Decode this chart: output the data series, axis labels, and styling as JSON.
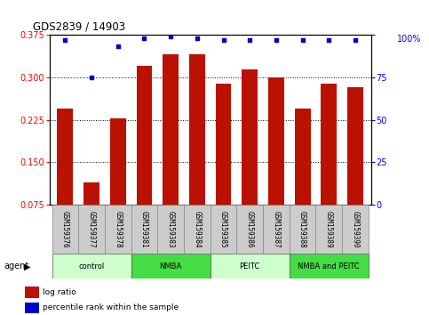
{
  "title": "GDS2839 / 14903",
  "samples": [
    "GSM159376",
    "GSM159377",
    "GSM159378",
    "GSM159381",
    "GSM159383",
    "GSM159384",
    "GSM159385",
    "GSM159386",
    "GSM159387",
    "GSM159388",
    "GSM159389",
    "GSM159390"
  ],
  "log_ratio": [
    0.245,
    0.115,
    0.228,
    0.32,
    0.34,
    0.34,
    0.288,
    0.313,
    0.3,
    0.245,
    0.288,
    0.283
  ],
  "percentile_rank": [
    97,
    75,
    93,
    98,
    99,
    98,
    97,
    97,
    97,
    97,
    97,
    97
  ],
  "ylim_left": [
    0.075,
    0.375
  ],
  "ylim_right": [
    0,
    100
  ],
  "yticks_left": [
    0.075,
    0.15,
    0.225,
    0.3,
    0.375
  ],
  "yticks_right": [
    0,
    25,
    50,
    75,
    100
  ],
  "bar_color": "#bb1100",
  "dot_color": "#0000cc",
  "groups": [
    {
      "label": "control",
      "start": 0,
      "end": 3,
      "color": "#ccffcc"
    },
    {
      "label": "NMBA",
      "start": 3,
      "end": 6,
      "color": "#44dd44"
    },
    {
      "label": "PEITC",
      "start": 6,
      "end": 9,
      "color": "#ccffcc"
    },
    {
      "label": "NMBA and PEITC",
      "start": 9,
      "end": 12,
      "color": "#44dd44"
    }
  ],
  "legend_bar": "log ratio",
  "legend_dot": "percentile rank within the sample",
  "right_axis_top_label": "100%"
}
